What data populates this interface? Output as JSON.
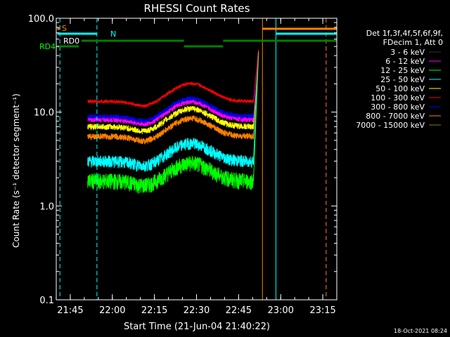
{
  "chart_data": {
    "type": "line",
    "title": "RHESSI Count Rates",
    "xlabel": "Start Time (21-Jun-04 21:40:22)",
    "ylabel": "Count Rate (s⁻¹ detector segment⁻¹)",
    "yscale": "log",
    "ylim": [
      0.1,
      100.0
    ],
    "xlim_minutes": [
      21.667,
      23.333
    ],
    "x_ticks": [
      "21:45",
      "22:00",
      "22:15",
      "22:30",
      "22:45",
      "23:00",
      "23:15"
    ],
    "y_ticks": [
      "0.1",
      "1.0",
      "10.0",
      "100.0"
    ],
    "legend_title_lines": [
      "Det 1f,3f,4f,5f,6f,9f,",
      "FDecim 1, Att 0"
    ],
    "legend_position": "right",
    "series": [
      {
        "name": "3 - 6 keV",
        "color": "#000000",
        "base": 1.45
      },
      {
        "name": "6 - 12 keV",
        "color": "#ff00ff",
        "base": 8.3
      },
      {
        "name": "12 - 25 keV",
        "color": "#00ff00",
        "base": 1.85
      },
      {
        "name": "25 - 50 keV",
        "color": "#00ffff",
        "base": 3.0
      },
      {
        "name": "50 - 100 keV",
        "color": "#ffff00",
        "base": 7.0
      },
      {
        "name": "100 - 300 keV",
        "color": "#ff0000",
        "base": 13.0
      },
      {
        "name": "300 - 800 keV",
        "color": "#0000ff",
        "base": 9.0
      },
      {
        "name": "800 - 7000 keV",
        "color": "#ff8000",
        "base": 5.5
      },
      {
        "name": "7000 - 15000 keV",
        "color": "#808000",
        "base": 0
      }
    ],
    "markers": {
      "S": {
        "label": "S",
        "color": "#ff8000"
      },
      "N": {
        "label": "N",
        "color": "#00ffff"
      },
      "RD0": {
        "label": "RD0",
        "color": "#ffffff"
      },
      "RD4": {
        "label": "RD4",
        "color": "#00ff00"
      }
    }
  },
  "footer": {
    "timestamp": "18-Oct-2021 08:24"
  }
}
